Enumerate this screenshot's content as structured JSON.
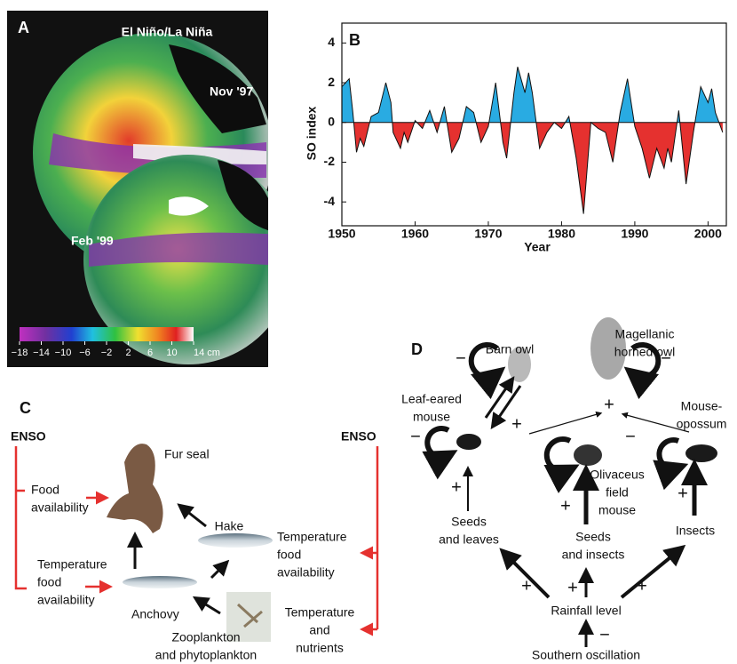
{
  "panel_a": {
    "label": "A",
    "title": "El Niño/La Niña",
    "globe_labels": [
      "Nov '97",
      "Feb '99"
    ],
    "colorbar_ticks": [
      {
        "value": -18,
        "label": "−18"
      },
      {
        "value": -14,
        "label": "−14"
      },
      {
        "value": -10,
        "label": "−10"
      },
      {
        "value": -6,
        "label": "−6"
      },
      {
        "value": -2,
        "label": "−2"
      },
      2,
      6,
      10,
      {
        "value": 14,
        "label": "14 cm"
      }
    ]
  },
  "chart_data": {
    "type": "area",
    "label": "B",
    "xlabel": "Year",
    "ylabel": "SO index",
    "x": [
      1950,
      1951,
      1951.5,
      1952,
      1952.5,
      1953,
      1954,
      1955,
      1956,
      1956.7,
      1957,
      1958,
      1958.5,
      1959,
      1960,
      1961,
      1962,
      1963,
      1964,
      1965,
      1966,
      1967,
      1968,
      1969,
      1970,
      1971,
      1972,
      1972.5,
      1973.5,
      1974,
      1975,
      1975.5,
      1976,
      1977,
      1978,
      1979,
      1980,
      1981,
      1982,
      1983,
      1984,
      1985,
      1986,
      1987,
      1988,
      1989,
      1990,
      1991,
      1992,
      1993,
      1994,
      1994.5,
      1995,
      1996,
      1997,
      1998,
      1999,
      2000,
      2000.5,
      2001,
      2002
    ],
    "values": [
      1.8,
      2.2,
      0.5,
      -1.5,
      -0.8,
      -1.2,
      0.3,
      0.5,
      2.0,
      1.0,
      -0.5,
      -1.3,
      -0.5,
      -1.0,
      0.1,
      -0.3,
      0.6,
      -0.5,
      0.8,
      -1.5,
      -0.8,
      0.8,
      0.5,
      -1.0,
      -0.2,
      2.0,
      -1.0,
      -1.8,
      1.5,
      2.8,
      1.5,
      2.5,
      1.5,
      -1.3,
      -0.5,
      0.0,
      -0.3,
      0.3,
      -1.8,
      -4.6,
      0.0,
      -0.3,
      -0.5,
      -2.0,
      0.5,
      2.2,
      -0.2,
      -1.3,
      -2.8,
      -1.3,
      -2.3,
      -1.3,
      -2.0,
      0.6,
      -3.1,
      -0.5,
      1.8,
      1.0,
      1.7,
      0.5,
      -0.5
    ],
    "xlim": [
      1950,
      2002.5
    ],
    "ylim": [
      -5.2,
      5
    ],
    "xticks": [
      1950,
      1960,
      1970,
      1980,
      1990,
      2000
    ],
    "yticks": [
      -4,
      -2,
      0,
      2,
      4
    ],
    "positive_color": "#29abe2",
    "negative_color": "#e5312f"
  },
  "panel_c": {
    "label": "C",
    "enso": [
      "ENSO",
      "ENSO"
    ],
    "nodes": [
      [
        "Fur seal"
      ],
      [
        "Hake"
      ],
      [
        "Anchovy"
      ],
      [
        "Zooplankton",
        "and phytoplankton"
      ],
      [
        "Food",
        "availability"
      ],
      [
        "Temperature",
        "food",
        "availability"
      ],
      [
        "Temperature",
        "food",
        "availability"
      ],
      [
        "Temperature",
        "and",
        "nutrients"
      ]
    ]
  },
  "panel_d": {
    "label": "D",
    "nodes": [
      [
        "Barn owl"
      ],
      [
        "Magellanic",
        "horned owl"
      ],
      [
        "Leaf-eared",
        "mouse"
      ],
      [
        "Mouse-",
        "opossum"
      ],
      [
        "Olivaceus",
        "field",
        "mouse"
      ],
      [
        "Seeds",
        "and leaves"
      ],
      [
        "Seeds",
        "and insects"
      ],
      [
        "Insects"
      ],
      [
        "Rainfall level"
      ],
      [
        "Southern oscillation"
      ]
    ],
    "signs": [
      "−",
      "−",
      "−",
      "+",
      "+",
      "−",
      "−",
      "+",
      "+",
      "+",
      "+",
      "+",
      "+",
      "−"
    ]
  }
}
